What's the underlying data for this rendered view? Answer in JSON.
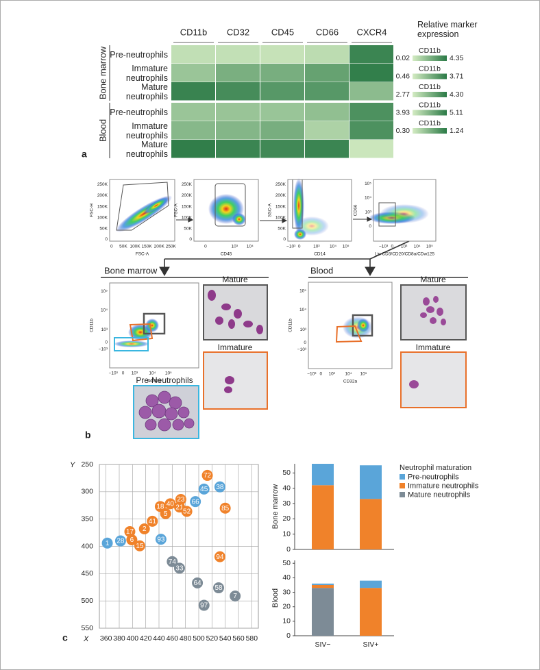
{
  "panel_a": {
    "label": "a",
    "type": "heatmap",
    "columns": [
      "CD11b",
      "CD32",
      "CD45",
      "CD66",
      "CXCR4"
    ],
    "color_low": "#d4ecc3",
    "color_high": "#2b7a46",
    "row_groups": [
      {
        "name": "Bone marrow",
        "rows": [
          "Pre-neutrophils",
          "Immature neutrophils",
          "Mature neutrophils"
        ],
        "values": [
          [
            0.5,
            0.8,
            2.9,
            4.1,
            1.15
          ],
          [
            1.5,
            2.2,
            3.6,
            4.7,
            1.2
          ],
          [
            4.0,
            3.2,
            3.9,
            4.8,
            0.7
          ]
        ]
      },
      {
        "name": "Blood",
        "rows": [
          "Pre-neutrophils",
          "Immature neutrophils",
          "Mature neutrophils"
        ],
        "values": [
          [
            1.5,
            1.6,
            3.3,
            4.4,
            1.05
          ],
          [
            2.0,
            2.0,
            3.6,
            4.2,
            1.05
          ],
          [
            4.2,
            3.4,
            4.1,
            5.0,
            0.35
          ]
        ]
      }
    ],
    "legend_title": "Relative marker expression",
    "scales": [
      {
        "name": "CD11b",
        "min": 0.02,
        "max": 4.35
      },
      {
        "name": "CD11b",
        "min": 0.46,
        "max": 3.71
      },
      {
        "name": "CD11b",
        "min": 2.77,
        "max": {
          "value": 4.3,
          "label": "4.30"
        }
      },
      {
        "name": "CD11b",
        "min": 3.93,
        "max": 5.11
      },
      {
        "name": "CD11b",
        "min": {
          "value": 0.3,
          "label": "0.30"
        },
        "max": 1.24
      }
    ]
  },
  "panel_b": {
    "label": "b",
    "gating_plots": [
      {
        "x_label": "FSC-A",
        "y_label": "FSC-H",
        "x_ticks": [
          "0",
          "50K",
          "100K",
          "150K",
          "200K",
          "250K"
        ],
        "y_ticks": [
          "0",
          "50K",
          "100K",
          "150K",
          "200K",
          "250K"
        ]
      },
      {
        "x_label": "CD45",
        "y_label": "FSC-A",
        "x_ticks": [
          "0",
          "10³",
          "10⁴"
        ],
        "y_ticks": [
          "0",
          "50K",
          "100K",
          "150K",
          "200K",
          "250K"
        ]
      },
      {
        "x_label": "CD14",
        "y_label": "SSC-A",
        "x_ticks": [
          "−10³",
          "0",
          "10³",
          "10⁴",
          "10⁵"
        ],
        "y_ticks": [
          "0",
          "50K",
          "100K",
          "150K",
          "200K",
          "250K"
        ]
      },
      {
        "x_label": "Lin CD3/CD20/CD8a/CDw125",
        "y_label": "CD66",
        "x_ticks": [
          "−10³",
          "0",
          "10³",
          "10⁴",
          "10⁵"
        ],
        "y_ticks": [
          "0",
          "10³",
          "10⁴",
          "10⁵"
        ]
      }
    ],
    "tissues": [
      {
        "name": "Bone marrow",
        "x_label": "CD32a",
        "y_label": "CD11b",
        "x_ticks": [
          "−10³",
          "0",
          "10³",
          "10⁴",
          "10⁵"
        ],
        "y_ticks": [
          "−10³",
          "0",
          "10³",
          "10⁴",
          "10⁵"
        ],
        "images": [
          "Mature",
          "Immature",
          "Pre-Neutrophils"
        ]
      },
      {
        "name": "Blood",
        "x_label": "CD32a",
        "y_label": "CD11b",
        "x_ticks": [
          "−10³",
          "0",
          "10³",
          "10⁴",
          "10⁵"
        ],
        "y_ticks": [
          "−10³",
          "0",
          "10³",
          "10⁴",
          "10⁵"
        ],
        "images": [
          "Mature",
          "Immature"
        ]
      }
    ]
  },
  "panel_c": {
    "label": "c",
    "scatter": {
      "type": "scatter",
      "x_label": "X",
      "y_label": "Y",
      "xlim": [
        350,
        590
      ],
      "ylim": [
        550,
        250
      ],
      "xticks": [
        360,
        380,
        400,
        420,
        440,
        460,
        480,
        500,
        520,
        540,
        560,
        580
      ],
      "yticks": [
        250,
        300,
        350,
        400,
        450,
        500,
        550
      ],
      "grid": true,
      "series": [
        {
          "color": "#5aa5d9",
          "labels": [
            "45",
            "38",
            "66",
            "93",
            "28",
            "1"
          ],
          "x": [
            508,
            532,
            495,
            443,
            382,
            362
          ],
          "y": [
            295,
            291,
            318,
            387,
            390,
            394
          ]
        },
        {
          "color": "#f0822a",
          "labels": [
            "72",
            "23",
            "18",
            "40",
            "21",
            "52",
            "5",
            "85",
            "41",
            "2",
            "17",
            "6",
            "15",
            "94"
          ],
          "x": [
            513,
            473,
            442,
            457,
            471,
            482,
            450,
            540,
            430,
            418,
            396,
            399,
            411,
            532
          ],
          "y": [
            270,
            314,
            327,
            322,
            328,
            336,
            340,
            330,
            354,
            368,
            373,
            388,
            399,
            419
          ]
        },
        {
          "color": "#7d8b96",
          "labels": [
            "74",
            "33",
            "64",
            "58",
            "7",
            "97"
          ],
          "x": [
            460,
            471,
            498,
            530,
            555,
            508
          ],
          "y": [
            428,
            440,
            467,
            476,
            491,
            508
          ]
        }
      ]
    },
    "bars": {
      "type": "bar",
      "stacked": true,
      "legend_title": "Neutrophil maturation",
      "categories": [
        "SIV−",
        "SIV+"
      ],
      "panels": [
        {
          "y_label": "Bone marrow",
          "ylim": [
            0,
            56
          ],
          "yticks": [
            0,
            10,
            20,
            30,
            40,
            50
          ],
          "series": [
            {
              "name": "Pre-neutrophils",
              "color": "#5aa5d9",
              "values": [
                14,
                22
              ]
            },
            {
              "name": "Immature neutrophils",
              "color": "#f0822a",
              "values": [
                42,
                33
              ]
            },
            {
              "name": "Mature neutrophils",
              "color": "#7d8b96",
              "values": [
                0,
                0
              ]
            }
          ]
        },
        {
          "y_label": "Blood",
          "ylim": [
            0,
            52
          ],
          "yticks": [
            0,
            10,
            20,
            30,
            40,
            50
          ],
          "series": [
            {
              "values": [
                1,
                5
              ]
            },
            {
              "values": [
                2,
                33
              ]
            },
            {
              "values": [
                33,
                0
              ]
            }
          ]
        }
      ]
    }
  }
}
